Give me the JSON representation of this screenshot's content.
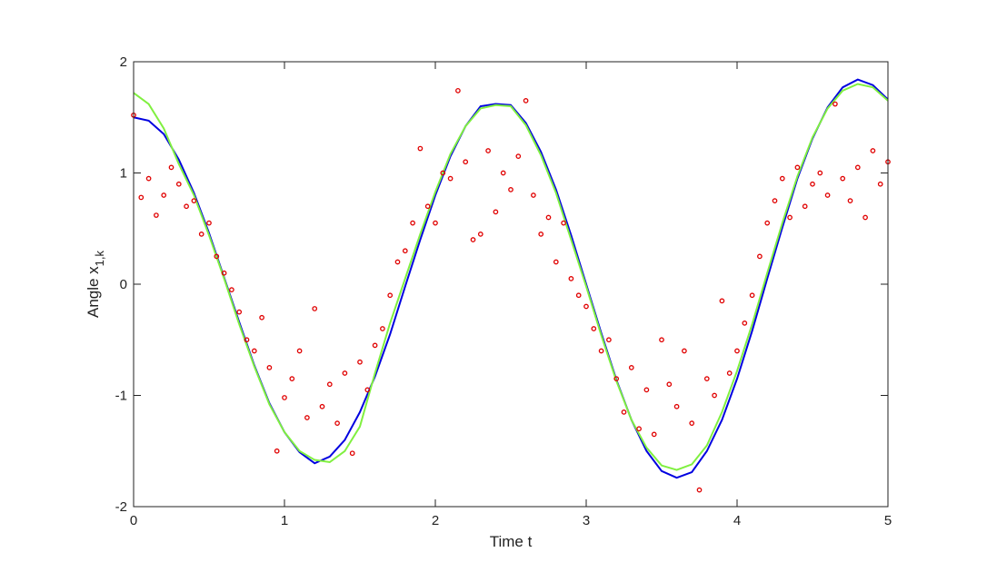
{
  "chart_data": {
    "type": "line",
    "xlabel": "Time t",
    "ylabel": "Angle x",
    "ylabel_subscript": "1,k",
    "xlim": [
      0,
      5
    ],
    "ylim": [
      -2,
      2
    ],
    "xticks": [
      0,
      1,
      2,
      3,
      4,
      5
    ],
    "yticks": [
      -2,
      -1,
      0,
      1,
      2
    ],
    "grid": false,
    "series": [
      {
        "type": "line",
        "color": "#0000e0",
        "x": [
          0,
          0.1,
          0.2,
          0.3,
          0.4,
          0.5,
          0.6,
          0.7,
          0.8,
          0.9,
          1,
          1.1,
          1.2,
          1.3,
          1.4,
          1.5,
          1.6,
          1.7,
          1.8,
          1.9,
          2,
          2.1,
          2.2,
          2.3,
          2.4,
          2.5,
          2.6,
          2.7,
          2.8,
          2.9,
          3,
          3.1,
          3.2,
          3.3,
          3.4,
          3.5,
          3.6,
          3.7,
          3.8,
          3.9,
          4,
          4.1,
          4.2,
          4.3,
          4.4,
          4.5,
          4.6,
          4.7,
          4.8,
          4.9,
          5
        ],
        "values": [
          1.5,
          1.47,
          1.35,
          1.12,
          0.82,
          0.46,
          0.06,
          -0.34,
          -0.73,
          -1.07,
          -1.33,
          -1.51,
          -1.61,
          -1.55,
          -1.4,
          -1.15,
          -0.83,
          -0.45,
          -0.02,
          0.4,
          0.8,
          1.15,
          1.42,
          1.6,
          1.62,
          1.61,
          1.45,
          1.19,
          0.85,
          0.44,
          0,
          -0.44,
          -0.86,
          -1.22,
          -1.5,
          -1.68,
          -1.74,
          -1.69,
          -1.5,
          -1.22,
          -0.85,
          -0.42,
          0.05,
          0.51,
          0.95,
          1.31,
          1.59,
          1.77,
          1.84,
          1.79,
          1.66
        ]
      },
      {
        "type": "line",
        "color": "#80f040",
        "x": [
          0,
          0.1,
          0.2,
          0.3,
          0.4,
          0.5,
          0.6,
          0.7,
          0.8,
          0.9,
          1,
          1.1,
          1.2,
          1.3,
          1.4,
          1.5,
          1.6,
          1.7,
          1.8,
          1.9,
          2,
          2.1,
          2.2,
          2.3,
          2.4,
          2.5,
          2.6,
          2.7,
          2.8,
          2.9,
          3,
          3.1,
          3.2,
          3.3,
          3.4,
          3.5,
          3.6,
          3.7,
          3.8,
          3.9,
          4,
          4.1,
          4.2,
          4.3,
          4.4,
          4.5,
          4.6,
          4.7,
          4.8,
          4.9,
          5
        ],
        "values": [
          1.72,
          1.62,
          1.4,
          1.08,
          0.8,
          0.44,
          0.05,
          -0.36,
          -0.74,
          -1.08,
          -1.33,
          -1.5,
          -1.58,
          -1.6,
          -1.5,
          -1.28,
          -0.8,
          -0.35,
          0.05,
          0.45,
          0.83,
          1.17,
          1.42,
          1.58,
          1.61,
          1.6,
          1.43,
          1.16,
          0.82,
          0.4,
          -0.02,
          -0.46,
          -0.87,
          -1.22,
          -1.47,
          -1.63,
          -1.67,
          -1.62,
          -1.45,
          -1.15,
          -0.78,
          -0.36,
          0.1,
          0.55,
          0.97,
          1.32,
          1.58,
          1.74,
          1.8,
          1.77,
          1.65
        ]
      },
      {
        "type": "scatter",
        "color": "#e00000",
        "x": [
          0,
          0.05,
          0.1,
          0.15,
          0.2,
          0.25,
          0.3,
          0.35,
          0.4,
          0.45,
          0.5,
          0.55,
          0.6,
          0.65,
          0.7,
          0.75,
          0.8,
          0.85,
          0.9,
          0.95,
          1,
          1.05,
          1.1,
          1.15,
          1.2,
          1.25,
          1.3,
          1.35,
          1.4,
          1.45,
          1.5,
          1.55,
          1.6,
          1.65,
          1.7,
          1.75,
          1.8,
          1.85,
          1.9,
          1.95,
          2,
          2.05,
          2.1,
          2.15,
          2.2,
          2.25,
          2.3,
          2.35,
          2.4,
          2.45,
          2.5,
          2.55,
          2.6,
          2.65,
          2.7,
          2.75,
          2.8,
          2.85,
          2.9,
          2.95,
          3,
          3.05,
          3.1,
          3.15,
          3.2,
          3.25,
          3.3,
          3.35,
          3.4,
          3.45,
          3.5,
          3.55,
          3.6,
          3.65,
          3.7,
          3.75,
          3.8,
          3.85,
          3.9,
          3.95,
          4,
          4.05,
          4.1,
          4.15,
          4.2,
          4.25,
          4.3,
          4.35,
          4.4,
          4.45,
          4.5,
          4.55,
          4.6,
          4.65,
          4.7,
          4.75,
          4.8,
          4.85,
          4.9,
          4.95,
          5
        ],
        "values": [
          1.52,
          0.78,
          0.95,
          0.62,
          0.8,
          1.05,
          0.9,
          0.7,
          0.75,
          0.45,
          0.55,
          0.25,
          0.1,
          -0.05,
          -0.25,
          -0.5,
          -0.6,
          -0.3,
          -0.75,
          -1.5,
          -1.02,
          -0.85,
          -0.6,
          -1.2,
          -0.22,
          -1.1,
          -0.9,
          -1.25,
          -0.8,
          -1.52,
          -0.7,
          -0.95,
          -0.55,
          -0.4,
          -0.1,
          0.2,
          0.3,
          0.55,
          1.22,
          0.7,
          0.55,
          1,
          0.95,
          1.74,
          1.1,
          0.4,
          0.45,
          1.2,
          0.65,
          1,
          0.85,
          1.15,
          1.65,
          0.8,
          0.45,
          0.6,
          0.2,
          0.55,
          0.05,
          -0.1,
          -0.2,
          -0.4,
          -0.6,
          -0.5,
          -0.85,
          -1.15,
          -0.75,
          -1.3,
          -0.95,
          -1.35,
          -0.5,
          -0.9,
          -1.1,
          -0.6,
          -1.25,
          -1.85,
          -0.85,
          -1,
          -0.15,
          -0.8,
          -0.6,
          -0.35,
          -0.1,
          0.25,
          0.55,
          0.75,
          0.95,
          0.6,
          1.05,
          0.7,
          0.9,
          1,
          0.8,
          1.62,
          0.95,
          0.75,
          1.05,
          0.6,
          1.2,
          0.9,
          1.1
        ]
      }
    ]
  }
}
